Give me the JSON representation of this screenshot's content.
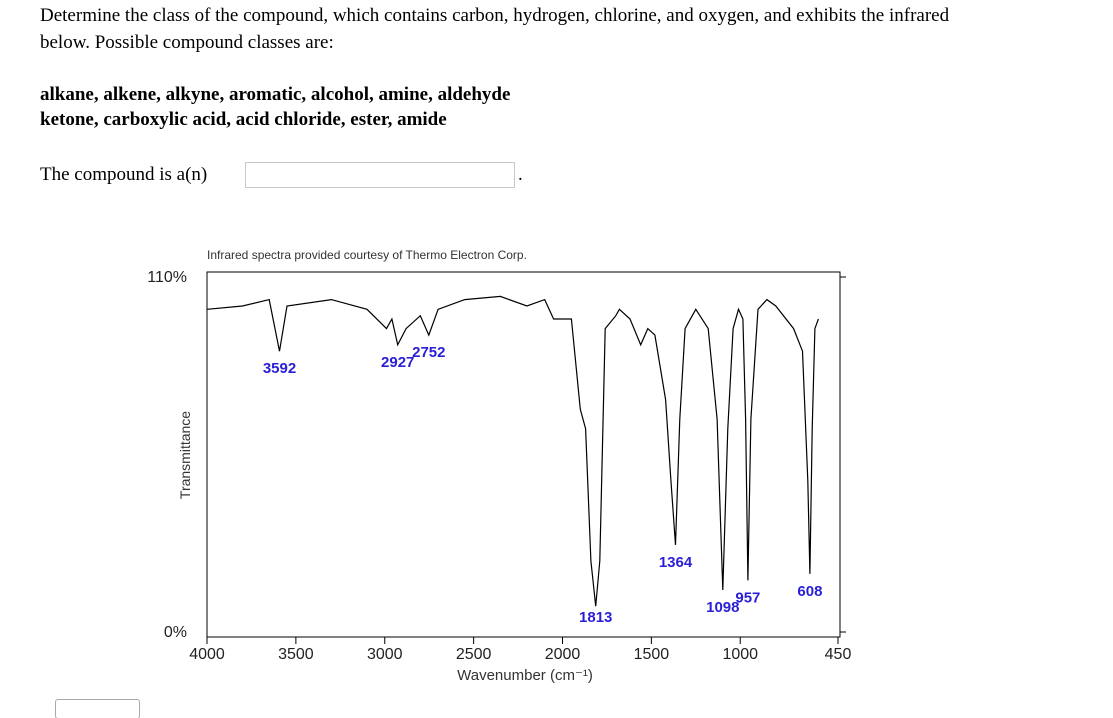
{
  "question": {
    "prompt_lines": [
      "Determine the class of the compound, which contains carbon, hydrogen, chlorine, and oxygen, and exhibits the infrared",
      "below. Possible compound classes are:"
    ],
    "class_lines": [
      "alkane, alkene, alkyne, aromatic, alcohol, amine, aldehyde",
      "ketone, carboxylic acid, acid chloride, ester, amide"
    ],
    "answer_label": "The compound is a(n)",
    "answer_suffix": "."
  },
  "chart_data": {
    "type": "line",
    "title": "Infrared spectra provided courtesy of Thermo Electron Corp.",
    "x_label": "Wavenumber (cm⁻¹)",
    "y_label": "Transmittance",
    "x": [
      4000,
      3800,
      3650,
      3592,
      3550,
      3300,
      3100,
      2990,
      2960,
      2927,
      2880,
      2800,
      2752,
      2700,
      2550,
      2350,
      2200,
      2100,
      2050,
      1950,
      1900,
      1870,
      1840,
      1813,
      1790,
      1760,
      1700,
      1680,
      1620,
      1560,
      1520,
      1480,
      1420,
      1390,
      1364,
      1340,
      1310,
      1250,
      1180,
      1130,
      1098,
      1070,
      1040,
      1010,
      985,
      970,
      957,
      940,
      900,
      850,
      800,
      700,
      650,
      620,
      608,
      595,
      580,
      560
    ],
    "values": [
      100,
      101,
      103,
      87,
      101,
      103,
      100,
      94,
      97,
      89,
      94,
      98,
      92,
      100,
      103,
      104,
      101,
      103,
      97,
      97,
      69,
      63,
      22,
      8,
      22,
      94,
      98,
      100,
      97,
      89,
      94,
      92,
      72,
      47,
      27,
      66,
      94,
      100,
      94,
      66,
      13,
      63,
      94,
      100,
      97,
      66,
      16,
      66,
      100,
      103,
      101,
      94,
      87,
      47,
      18,
      63,
      94,
      97
    ],
    "color": "#000000",
    "annotations": [
      {
        "x": 3592
      },
      {
        "x": 2927
      },
      {
        "x": 2752
      },
      {
        "x": 1813
      },
      {
        "x": 1364
      },
      {
        "x": 1098
      },
      {
        "x": 957
      },
      {
        "x": 608
      }
    ],
    "annotation_color": "#2a1fd6",
    "xlim": [
      4000,
      450
    ],
    "xticks": [
      4000,
      3500,
      3000,
      2500,
      2000,
      1500,
      1000,
      450
    ],
    "ylim": [
      0,
      110
    ],
    "yticks": [
      {
        "value": 0,
        "label": "0%"
      },
      {
        "value": 110,
        "label": "110%"
      }
    ]
  }
}
